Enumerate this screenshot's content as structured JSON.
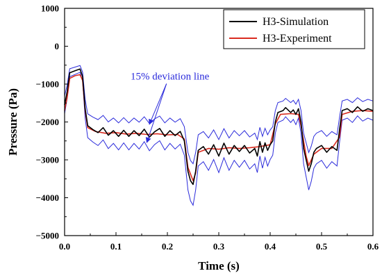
{
  "chart_data": {
    "type": "line",
    "xlabel": "Time (s)",
    "ylabel": "Pressure (Pa)",
    "xlim": [
      0.0,
      0.6
    ],
    "ylim": [
      -5000,
      1000
    ],
    "x_ticks": [
      "0.0",
      "0.1",
      "0.2",
      "0.3",
      "0.4",
      "0.5",
      "0.6"
    ],
    "y_ticks": [
      "1000",
      "0",
      "−1000",
      "−2000",
      "−3000",
      "−4000",
      "−5000"
    ],
    "x_tick_values": [
      0.0,
      0.1,
      0.2,
      0.3,
      0.4,
      0.5,
      0.6
    ],
    "y_tick_values": [
      1000,
      0,
      -1000,
      -2000,
      -3000,
      -4000,
      -5000
    ],
    "grid": false,
    "legend_position": "top-right",
    "series": [
      {
        "name": "H3-Simulation",
        "color": "#000000",
        "points": [
          [
            0.0,
            -1550
          ],
          [
            0.005,
            -1200
          ],
          [
            0.01,
            -700
          ],
          [
            0.02,
            -650
          ],
          [
            0.03,
            -600
          ],
          [
            0.035,
            -800
          ],
          [
            0.04,
            -1650
          ],
          [
            0.045,
            -2100
          ],
          [
            0.055,
            -2200
          ],
          [
            0.065,
            -2280
          ],
          [
            0.075,
            -2150
          ],
          [
            0.085,
            -2350
          ],
          [
            0.095,
            -2230
          ],
          [
            0.105,
            -2380
          ],
          [
            0.115,
            -2220
          ],
          [
            0.125,
            -2380
          ],
          [
            0.135,
            -2230
          ],
          [
            0.145,
            -2360
          ],
          [
            0.155,
            -2190
          ],
          [
            0.165,
            -2400
          ],
          [
            0.175,
            -2260
          ],
          [
            0.185,
            -2170
          ],
          [
            0.195,
            -2380
          ],
          [
            0.205,
            -2230
          ],
          [
            0.215,
            -2360
          ],
          [
            0.225,
            -2250
          ],
          [
            0.233,
            -2500
          ],
          [
            0.24,
            -3300
          ],
          [
            0.245,
            -3550
          ],
          [
            0.25,
            -3650
          ],
          [
            0.255,
            -3300
          ],
          [
            0.26,
            -2750
          ],
          [
            0.27,
            -2650
          ],
          [
            0.28,
            -2850
          ],
          [
            0.29,
            -2600
          ],
          [
            0.3,
            -2900
          ],
          [
            0.31,
            -2560
          ],
          [
            0.32,
            -2850
          ],
          [
            0.33,
            -2620
          ],
          [
            0.34,
            -2780
          ],
          [
            0.35,
            -2620
          ],
          [
            0.36,
            -2820
          ],
          [
            0.37,
            -2700
          ],
          [
            0.375,
            -2900
          ],
          [
            0.38,
            -2520
          ],
          [
            0.385,
            -2800
          ],
          [
            0.39,
            -2550
          ],
          [
            0.395,
            -2750
          ],
          [
            0.4,
            -2600
          ],
          [
            0.405,
            -2500
          ],
          [
            0.41,
            -2000
          ],
          [
            0.415,
            -1750
          ],
          [
            0.425,
            -1700
          ],
          [
            0.43,
            -1620
          ],
          [
            0.44,
            -1750
          ],
          [
            0.445,
            -1680
          ],
          [
            0.45,
            -1800
          ],
          [
            0.455,
            -1650
          ],
          [
            0.46,
            -2000
          ],
          [
            0.465,
            -2700
          ],
          [
            0.47,
            -3000
          ],
          [
            0.475,
            -3300
          ],
          [
            0.48,
            -3100
          ],
          [
            0.485,
            -2800
          ],
          [
            0.49,
            -2700
          ],
          [
            0.5,
            -2620
          ],
          [
            0.51,
            -2800
          ],
          [
            0.52,
            -2650
          ],
          [
            0.53,
            -2750
          ],
          [
            0.535,
            -2200
          ],
          [
            0.54,
            -1700
          ],
          [
            0.55,
            -1650
          ],
          [
            0.56,
            -1750
          ],
          [
            0.57,
            -1600
          ],
          [
            0.58,
            -1720
          ],
          [
            0.59,
            -1650
          ],
          [
            0.6,
            -1700
          ]
        ]
      },
      {
        "name": "H3-Experiment",
        "color": "#d92b1f",
        "points": [
          [
            0.0,
            -1700
          ],
          [
            0.005,
            -1350
          ],
          [
            0.01,
            -850
          ],
          [
            0.02,
            -780
          ],
          [
            0.03,
            -750
          ],
          [
            0.035,
            -900
          ],
          [
            0.04,
            -1700
          ],
          [
            0.045,
            -2150
          ],
          [
            0.06,
            -2250
          ],
          [
            0.08,
            -2300
          ],
          [
            0.1,
            -2280
          ],
          [
            0.12,
            -2320
          ],
          [
            0.14,
            -2300
          ],
          [
            0.16,
            -2330
          ],
          [
            0.18,
            -2310
          ],
          [
            0.2,
            -2340
          ],
          [
            0.22,
            -2330
          ],
          [
            0.233,
            -2450
          ],
          [
            0.24,
            -3200
          ],
          [
            0.25,
            -3550
          ],
          [
            0.255,
            -3350
          ],
          [
            0.26,
            -2800
          ],
          [
            0.28,
            -2700
          ],
          [
            0.3,
            -2720
          ],
          [
            0.32,
            -2680
          ],
          [
            0.34,
            -2700
          ],
          [
            0.36,
            -2680
          ],
          [
            0.38,
            -2650
          ],
          [
            0.4,
            -2600
          ],
          [
            0.41,
            -2050
          ],
          [
            0.42,
            -1800
          ],
          [
            0.44,
            -1780
          ],
          [
            0.455,
            -1800
          ],
          [
            0.46,
            -2100
          ],
          [
            0.47,
            -2900
          ],
          [
            0.475,
            -3150
          ],
          [
            0.485,
            -2850
          ],
          [
            0.5,
            -2700
          ],
          [
            0.52,
            -2700
          ],
          [
            0.535,
            -2400
          ],
          [
            0.54,
            -1800
          ],
          [
            0.56,
            -1720
          ],
          [
            0.58,
            -1700
          ],
          [
            0.6,
            -1720
          ]
        ]
      }
    ],
    "deviation_band": {
      "color": "#2a2adb",
      "fraction": 0.15
    },
    "annotations": [
      {
        "text": "15% deviation line",
        "x": 0.205,
        "y": -880
      }
    ]
  }
}
